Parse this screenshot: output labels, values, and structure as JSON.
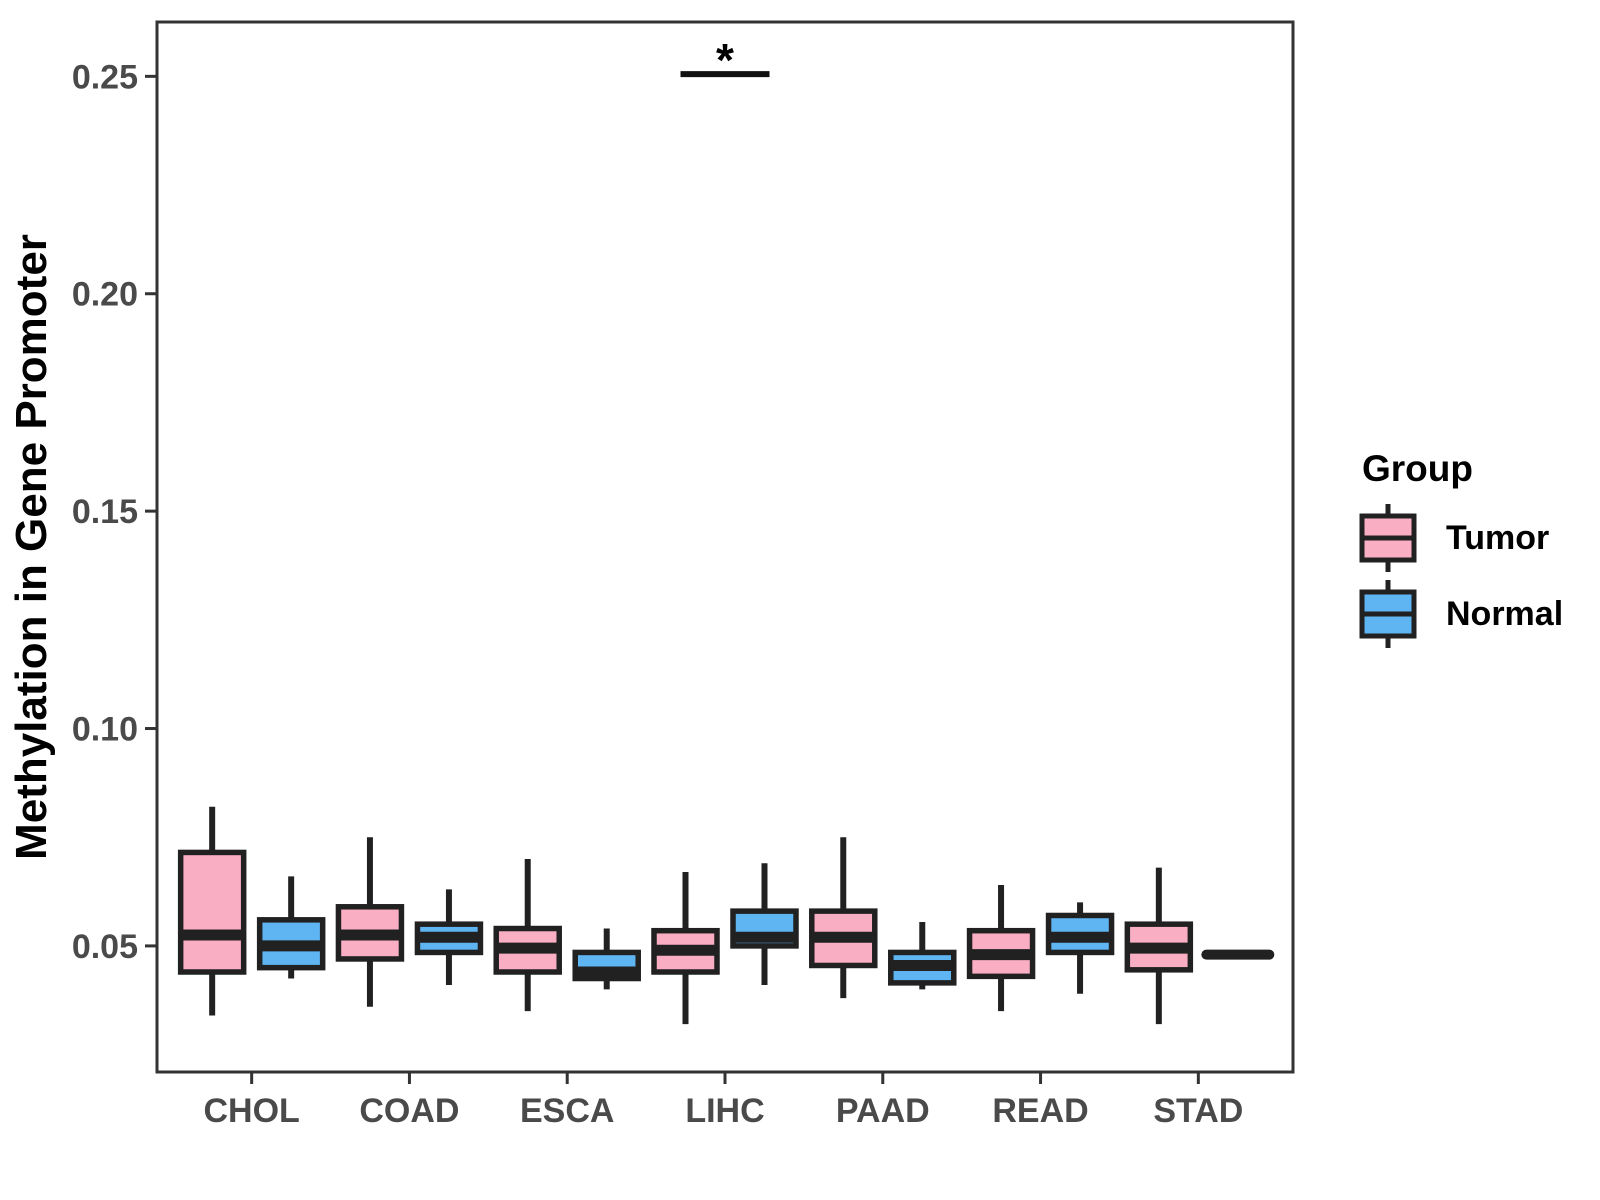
{
  "chart_data": {
    "type": "boxplot",
    "title": "",
    "xlabel": "",
    "ylabel": "Methylation in Gene Promoter",
    "categories": [
      "CHOL",
      "COAD",
      "ESCA",
      "LIHC",
      "PAAD",
      "READ",
      "STAD"
    ],
    "y_axis": {
      "tick_values": [
        0.05,
        0.1,
        0.15,
        0.2,
        0.25
      ],
      "tick_labels": [
        "0.05",
        "0.10",
        "0.15",
        "0.20",
        "0.25"
      ],
      "domain": [
        0.021,
        0.2625
      ],
      "grid": "off"
    },
    "legend": {
      "title": "Group",
      "position": "right",
      "entries": [
        {
          "label": "Tumor",
          "color": "#FAAEC3"
        },
        {
          "label": "Normal",
          "color": "#5FB4F2"
        }
      ]
    },
    "series": [
      {
        "name": "Tumor",
        "color": "#FAAEC3",
        "boxes": [
          {
            "category": "CHOL",
            "min": 0.034,
            "q1": 0.044,
            "median": 0.0525,
            "q3": 0.0715,
            "max": 0.082
          },
          {
            "category": "COAD",
            "min": 0.036,
            "q1": 0.047,
            "median": 0.0525,
            "q3": 0.059,
            "max": 0.075
          },
          {
            "category": "ESCA",
            "min": 0.035,
            "q1": 0.044,
            "median": 0.0495,
            "q3": 0.054,
            "max": 0.07
          },
          {
            "category": "LIHC",
            "min": 0.032,
            "q1": 0.044,
            "median": 0.049,
            "q3": 0.0535,
            "max": 0.067
          },
          {
            "category": "PAAD",
            "min": 0.038,
            "q1": 0.0455,
            "median": 0.052,
            "q3": 0.058,
            "max": 0.075
          },
          {
            "category": "READ",
            "min": 0.035,
            "q1": 0.043,
            "median": 0.048,
            "q3": 0.0535,
            "max": 0.064
          },
          {
            "category": "STAD",
            "min": 0.032,
            "q1": 0.0445,
            "median": 0.0495,
            "q3": 0.055,
            "max": 0.068
          }
        ]
      },
      {
        "name": "Normal",
        "color": "#5FB4F2",
        "boxes": [
          {
            "category": "CHOL",
            "min": 0.0425,
            "q1": 0.045,
            "median": 0.05,
            "q3": 0.056,
            "max": 0.066
          },
          {
            "category": "COAD",
            "min": 0.041,
            "q1": 0.0485,
            "median": 0.052,
            "q3": 0.055,
            "max": 0.063
          },
          {
            "category": "ESCA",
            "min": 0.04,
            "q1": 0.0425,
            "median": 0.044,
            "q3": 0.0485,
            "max": 0.054
          },
          {
            "category": "LIHC",
            "min": 0.041,
            "q1": 0.05,
            "median": 0.052,
            "q3": 0.058,
            "max": 0.069
          },
          {
            "category": "PAAD",
            "min": 0.04,
            "q1": 0.0415,
            "median": 0.0455,
            "q3": 0.0485,
            "max": 0.0555
          },
          {
            "category": "READ",
            "min": 0.039,
            "q1": 0.0485,
            "median": 0.052,
            "q3": 0.057,
            "max": 0.06
          },
          {
            "category": "STAD",
            "min": 0.048,
            "q1": 0.048,
            "median": 0.048,
            "q3": 0.048,
            "max": 0.048
          }
        ]
      }
    ],
    "annotation": {
      "label": "*",
      "category": "LIHC",
      "bar_value": 0.2505,
      "between": [
        "Tumor",
        "Normal"
      ]
    },
    "style_colors": {
      "box_stroke": "#212121",
      "axis_and_border": "#333333",
      "tick_label": "#4a4a4a",
      "axis_title": "#000000"
    }
  }
}
